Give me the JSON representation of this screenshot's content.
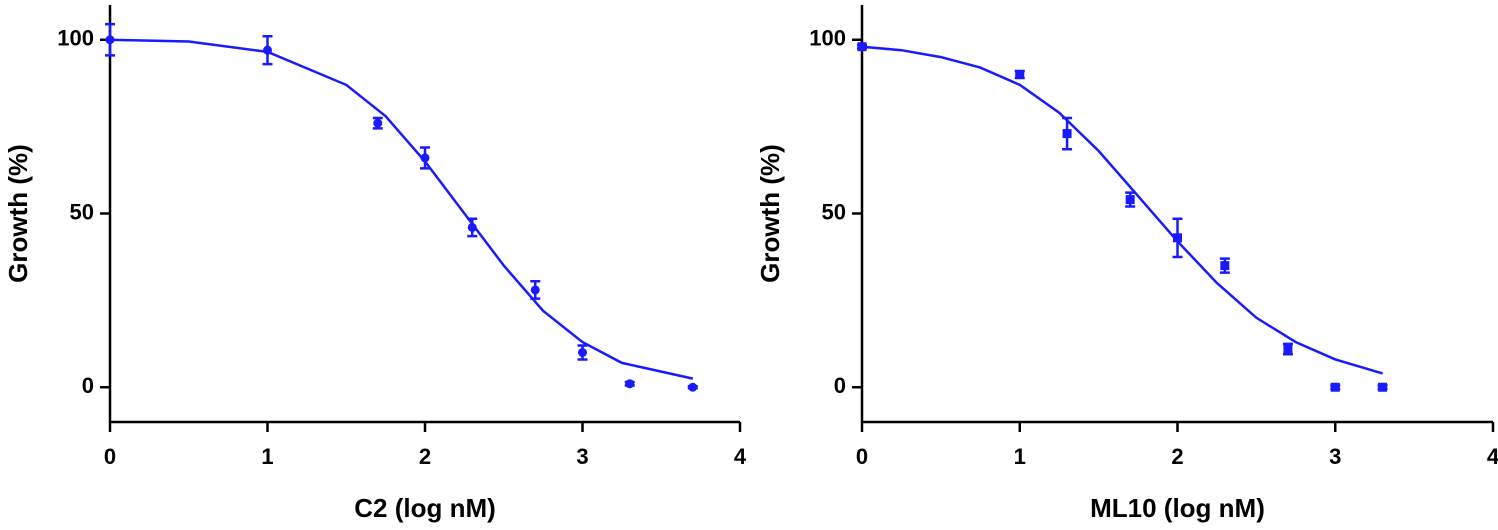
{
  "chart_data": [
    {
      "type": "scatter",
      "x_label": "C2 (log nM)",
      "y_label": "Growth (%)",
      "color": "#1a1aff",
      "marker": "circle",
      "xlim": [
        0,
        4
      ],
      "ylim": [
        -10,
        110
      ],
      "xticks": [
        0,
        1,
        2,
        3,
        4
      ],
      "yticks": [
        0,
        50,
        100
      ],
      "series": [
        {
          "x": [
            0,
            1,
            1.7,
            2,
            2.3,
            2.7,
            3,
            3.3,
            3.7
          ],
          "values": [
            100,
            97,
            76,
            66,
            46,
            28,
            10,
            1,
            0
          ],
          "errors": [
            4.5,
            4,
            1.5,
            3,
            2.5,
            2.5,
            2,
            0.5,
            0.3
          ]
        }
      ],
      "fit": {
        "x": [
          0,
          0.5,
          1,
          1.5,
          1.75,
          2,
          2.25,
          2.5,
          2.75,
          3,
          3.25,
          3.5,
          3.7
        ],
        "values": [
          100,
          99.5,
          96.5,
          87,
          78,
          65,
          50,
          35,
          22,
          13,
          7,
          4.5,
          2.5
        ]
      }
    },
    {
      "type": "scatter",
      "x_label": "ML10 (log nM)",
      "y_label": "Growth (%)",
      "color": "#1a1aff",
      "marker": "square",
      "xlim": [
        0,
        4
      ],
      "ylim": [
        -10,
        110
      ],
      "xticks": [
        0,
        1,
        2,
        3,
        4
      ],
      "yticks": [
        0,
        50,
        100
      ],
      "series": [
        {
          "x": [
            0,
            1,
            1.3,
            1.7,
            2,
            2.3,
            2.7,
            3,
            3.3
          ],
          "values": [
            98,
            90,
            73,
            54,
            43,
            35,
            11,
            0,
            0
          ],
          "errors": [
            0.5,
            1,
            4.5,
            2,
            5.5,
            2,
            1.5,
            0.5,
            0.5
          ]
        }
      ],
      "fit": {
        "x": [
          0,
          0.25,
          0.5,
          0.75,
          1,
          1.25,
          1.5,
          1.75,
          2,
          2.25,
          2.5,
          2.75,
          3,
          3.3
        ],
        "values": [
          98,
          97,
          95,
          92,
          87,
          79,
          68,
          55,
          42,
          30,
          20,
          13,
          8,
          4
        ]
      }
    }
  ]
}
